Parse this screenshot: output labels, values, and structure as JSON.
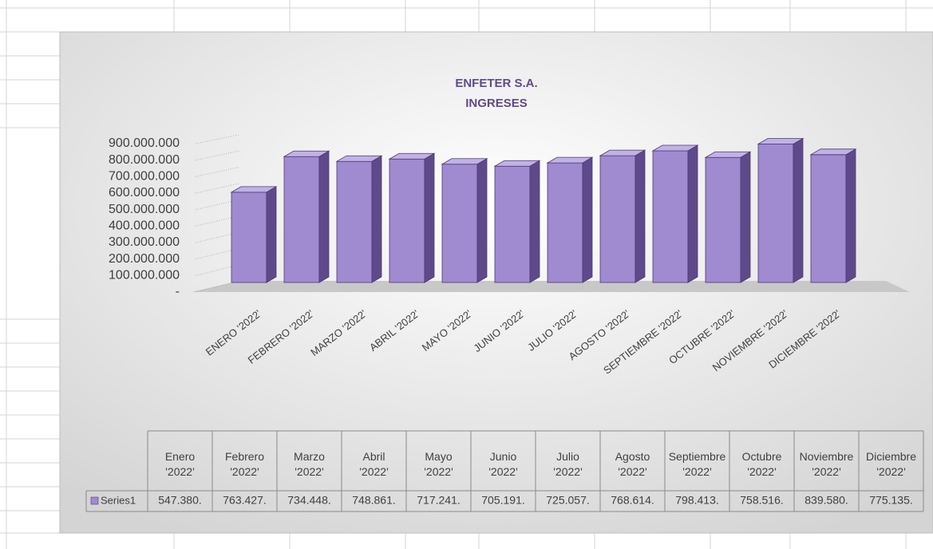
{
  "chart_data": {
    "type": "bar3d",
    "title": "ENFETER S.A.",
    "subtitle": "INGRESES",
    "categories": [
      "ENERO '2022'",
      "FEBRERO '2022'",
      "MARZO '2022'",
      "ABRIL '2022'",
      "MAYO '2022'",
      "JUNIO '2022'",
      "JULIO '2022'",
      "AGOSTO '2022'",
      "SEPTIEMBRE '2022'",
      "OCTUBRE '2022'",
      "NOVIEMBRE '2022'",
      "DICIEMBRE '2022'"
    ],
    "table_headers": [
      "Enero '2022'",
      "Febrero '2022'",
      "Marzo '2022'",
      "Abril '2022'",
      "Mayo '2022'",
      "Junio '2022'",
      "Julio '2022'",
      "Agosto '2022'",
      "Septiembre '2022'",
      "Octubre '2022'",
      "Noviembre '2022'",
      "Diciembre '2022'"
    ],
    "series": [
      {
        "name": "Series1",
        "color": "#a08ad0",
        "values": [
          547380000,
          763427000,
          734448000,
          748861000,
          717241000,
          705191000,
          725057000,
          768614000,
          798413000,
          758516000,
          839580000,
          775135000
        ],
        "value_labels": [
          "547.380.",
          "763.427.",
          "734.448.",
          "748.861.",
          "717.241.",
          "705.191.",
          "725.057.",
          "768.614.",
          "798.413.",
          "758.516.",
          "839.580.",
          "775.135."
        ]
      }
    ],
    "ylim": [
      0,
      900000000
    ],
    "yticks": [
      {
        "value": 0,
        "label": "-"
      },
      {
        "value": 100000000,
        "label": "100.000.000"
      },
      {
        "value": 200000000,
        "label": "200.000.000"
      },
      {
        "value": 300000000,
        "label": "300.000.000"
      },
      {
        "value": 400000000,
        "label": "400.000.000"
      },
      {
        "value": 500000000,
        "label": "500.000.000"
      },
      {
        "value": 600000000,
        "label": "600.000.000"
      },
      {
        "value": 700000000,
        "label": "700.000.000"
      },
      {
        "value": 800000000,
        "label": "800.000.000"
      },
      {
        "value": 900000000,
        "label": "900.000.000"
      }
    ],
    "grid": true
  }
}
